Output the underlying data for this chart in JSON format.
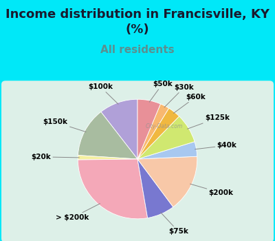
{
  "title": "Income distribution in Francisville, KY\n(%)",
  "subtitle": "All residents",
  "labels": [
    "$100k",
    "$150k",
    "$20k",
    "> $200k",
    "$75k",
    "$200k",
    "$40k",
    "$125k",
    "$60k",
    "$30k",
    "$50k"
  ],
  "values": [
    10.5,
    13.5,
    1.2,
    27.5,
    7.5,
    15.5,
    4.0,
    8.0,
    3.5,
    2.5,
    6.3
  ],
  "colors": [
    "#b0a0d8",
    "#a8bca0",
    "#f5f0a0",
    "#f4a8b8",
    "#7878d0",
    "#f8c8a8",
    "#a8c8f0",
    "#d0e870",
    "#f0b840",
    "#f8b870",
    "#e89098"
  ],
  "background_color": "#00e8f8",
  "chart_bg": "#ddf0e8",
  "title_fontsize": 13,
  "subtitle_fontsize": 11,
  "subtitle_color": "#5a9090",
  "label_fontsize": 7.5
}
